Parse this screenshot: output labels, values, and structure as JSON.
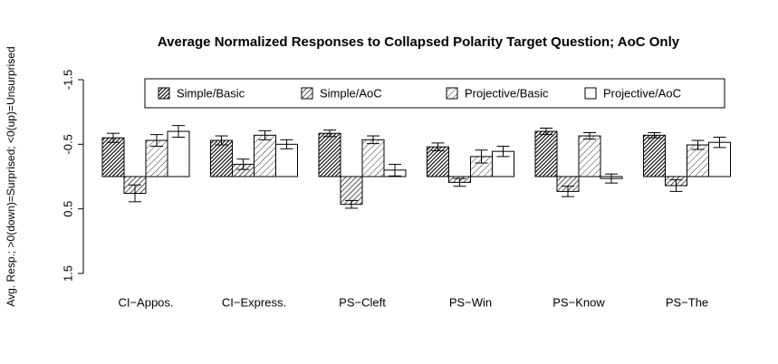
{
  "chart_data": {
    "type": "bar",
    "title": "Average Normalized Responses to Collapsed Polarity Target Question; AoC Only",
    "y_label": "Avg. Resp.; >0(down)=Surprised; <0(up)=Unsurprised",
    "categories": [
      "CI−Appos.",
      "CI−Express.",
      "PS−Cleft",
      "PS−Win",
      "PS−Know",
      "PS−The"
    ],
    "series": [
      {
        "name": "Simple/Basic",
        "pattern": "dense",
        "color": "#000000",
        "values": [
          -0.6,
          -0.56,
          -0.67,
          -0.46,
          -0.7,
          -0.64
        ],
        "errors": [
          0.07,
          0.07,
          0.05,
          0.06,
          0.05,
          0.04
        ]
      },
      {
        "name": "Simple/AoC",
        "pattern": "medium",
        "color": "#000000",
        "values": [
          0.26,
          -0.19,
          0.43,
          0.09,
          0.23,
          0.14
        ],
        "errors": [
          0.13,
          0.08,
          0.06,
          0.06,
          0.08,
          0.09
        ]
      },
      {
        "name": "Projective/Basic",
        "pattern": "sparse",
        "color": "#000000",
        "values": [
          -0.56,
          -0.64,
          -0.57,
          -0.31,
          -0.63,
          -0.49
        ],
        "errors": [
          0.09,
          0.07,
          0.06,
          0.1,
          0.05,
          0.07
        ]
      },
      {
        "name": "Projective/AoC",
        "pattern": "none",
        "color": "#000000",
        "values": [
          -0.7,
          -0.5,
          -0.1,
          -0.39,
          0.03,
          -0.53
        ],
        "errors": [
          0.09,
          0.07,
          0.09,
          0.08,
          0.07,
          0.08
        ]
      }
    ],
    "ylim": [
      -1.5,
      1.5
    ],
    "y_reversed": true,
    "yticks": [
      -1.5,
      -0.5,
      0.5,
      1.5
    ],
    "legend": "top"
  }
}
